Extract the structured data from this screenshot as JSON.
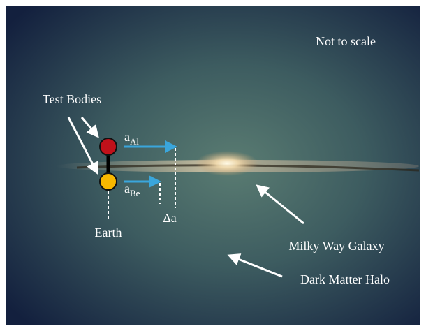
{
  "note": "Not to scale",
  "test_bodies": "Test Bodies",
  "accel_al": {
    "symbol": "a",
    "subscript": "Al"
  },
  "accel_be": {
    "symbol": "a",
    "subscript": "Be"
  },
  "delta": "Δa",
  "earth": "Earth",
  "galaxy": "Milky Way Galaxy",
  "halo": "Dark Matter Halo"
}
